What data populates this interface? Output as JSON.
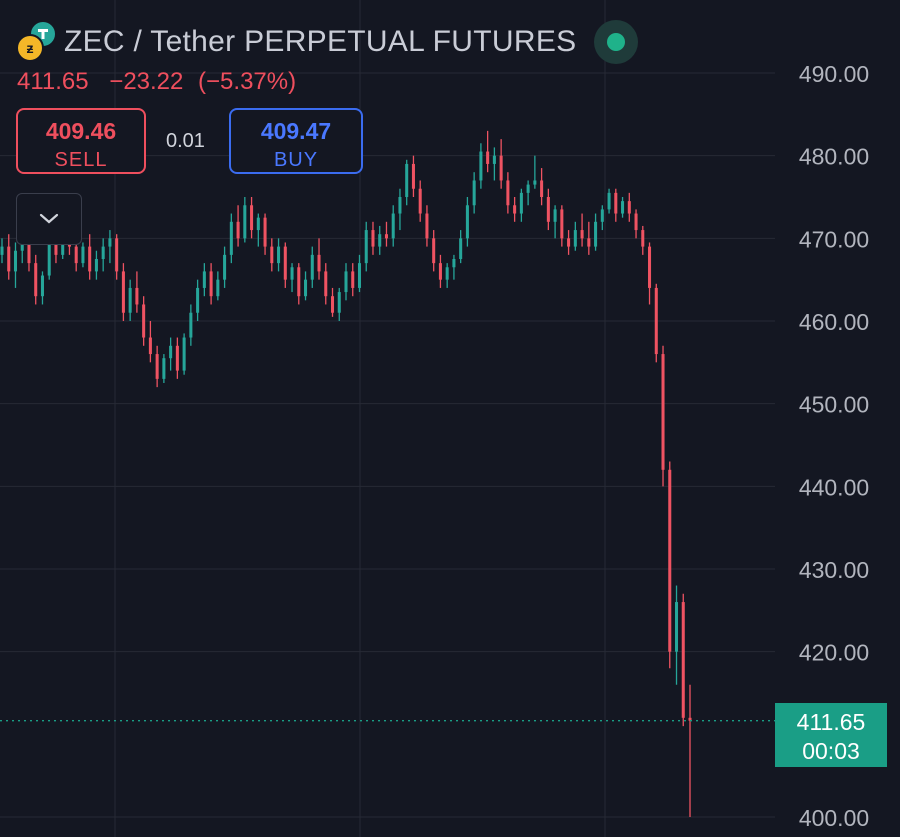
{
  "header": {
    "symbol_text": "ZEC / Tether PERPETUAL FUTURES",
    "quote_price": "411.65",
    "quote_change": "−23.22",
    "quote_change_pct": "(−5.37%)",
    "base_icon": "zcash-coin-icon",
    "quote_icon": "tether-coin-icon",
    "status_icon": "market-open-status-icon"
  },
  "trade": {
    "sell_price": "409.46",
    "sell_label": "SELL",
    "spread": "0.01",
    "buy_price": "409.47",
    "buy_label": "BUY",
    "collapse_icon": "chevron-down-icon"
  },
  "price_tag": {
    "price": "411.65",
    "countdown": "00:03"
  },
  "colors": {
    "background": "#141722",
    "up": "#26a69a",
    "down": "#ef5362",
    "grid": "#262a35",
    "axis_text": "#b2b5be",
    "sell": "#ef4f5e",
    "buy": "#4a78ff",
    "last_price": "#1a9e86"
  },
  "chart_data": {
    "type": "candlestick",
    "title": "ZEC / Tether PERPETUAL FUTURES",
    "ylim": [
      399,
      492
    ],
    "y_ticks": [
      "400.00",
      "420.00",
      "430.00",
      "440.00",
      "450.00",
      "460.00",
      "470.00",
      "480.00",
      "490.00"
    ],
    "last_price": 411.65,
    "grid": true,
    "candles": [
      [
        468.0,
        470.0,
        467.0,
        469.0
      ],
      [
        469.0,
        470.5,
        465.0,
        466.0
      ],
      [
        466.0,
        469.5,
        464.0,
        468.5
      ],
      [
        468.5,
        472.0,
        467.0,
        471.0
      ],
      [
        471.0,
        472.0,
        466.0,
        467.0
      ],
      [
        467.0,
        468.0,
        462.0,
        463.0
      ],
      [
        463.0,
        466.0,
        462.0,
        465.5
      ],
      [
        465.5,
        470.0,
        465.0,
        469.5
      ],
      [
        469.5,
        471.0,
        467.0,
        468.0
      ],
      [
        468.0,
        473.0,
        467.5,
        472.0
      ],
      [
        472.0,
        473.0,
        468.0,
        469.0
      ],
      [
        469.0,
        470.0,
        466.0,
        467.0
      ],
      [
        467.0,
        469.5,
        466.5,
        469.0
      ],
      [
        469.0,
        470.5,
        465.0,
        466.0
      ],
      [
        466.0,
        468.5,
        465.0,
        467.5
      ],
      [
        467.5,
        470.0,
        466.0,
        469.0
      ],
      [
        469.0,
        471.0,
        467.0,
        470.0
      ],
      [
        470.0,
        470.5,
        465.0,
        466.0
      ],
      [
        466.0,
        467.0,
        460.0,
        461.0
      ],
      [
        461.0,
        465.0,
        460.0,
        464.0
      ],
      [
        464.0,
        466.0,
        461.0,
        462.0
      ],
      [
        462.0,
        463.0,
        457.0,
        458.0
      ],
      [
        458.0,
        460.0,
        455.0,
        456.0
      ],
      [
        456.0,
        457.0,
        452.0,
        453.0
      ],
      [
        453.0,
        456.0,
        452.5,
        455.5
      ],
      [
        455.5,
        458.0,
        454.0,
        457.0
      ],
      [
        457.0,
        458.0,
        453.0,
        454.0
      ],
      [
        454.0,
        458.5,
        453.5,
        458.0
      ],
      [
        458.0,
        462.0,
        457.0,
        461.0
      ],
      [
        461.0,
        465.0,
        460.0,
        464.0
      ],
      [
        464.0,
        467.0,
        463.0,
        466.0
      ],
      [
        466.0,
        467.0,
        462.0,
        463.0
      ],
      [
        463.0,
        466.0,
        462.5,
        465.0
      ],
      [
        465.0,
        469.0,
        464.0,
        468.0
      ],
      [
        468.0,
        473.0,
        467.0,
        472.0
      ],
      [
        472.0,
        474.0,
        469.0,
        470.0
      ],
      [
        470.0,
        475.0,
        469.5,
        474.0
      ],
      [
        474.0,
        475.0,
        470.0,
        471.0
      ],
      [
        471.0,
        473.0,
        469.0,
        472.5
      ],
      [
        472.5,
        473.0,
        468.0,
        469.0
      ],
      [
        469.0,
        470.0,
        466.0,
        467.0
      ],
      [
        467.0,
        470.0,
        466.0,
        469.0
      ],
      [
        469.0,
        469.5,
        464.0,
        465.0
      ],
      [
        465.0,
        467.0,
        463.5,
        466.5
      ],
      [
        466.5,
        467.0,
        462.0,
        463.0
      ],
      [
        463.0,
        466.0,
        462.5,
        465.0
      ],
      [
        465.0,
        469.0,
        464.0,
        468.0
      ],
      [
        468.0,
        470.0,
        465.0,
        466.0
      ],
      [
        466.0,
        467.0,
        462.0,
        463.0
      ],
      [
        463.0,
        464.0,
        460.5,
        461.0
      ],
      [
        461.0,
        464.0,
        460.0,
        463.5
      ],
      [
        463.5,
        467.0,
        462.5,
        466.0
      ],
      [
        466.0,
        467.0,
        463.0,
        464.0
      ],
      [
        464.0,
        468.0,
        463.5,
        467.0
      ],
      [
        467.0,
        472.0,
        466.0,
        471.0
      ],
      [
        471.0,
        472.0,
        468.0,
        469.0
      ],
      [
        469.0,
        471.5,
        468.0,
        470.5
      ],
      [
        470.5,
        472.0,
        469.0,
        470.0
      ],
      [
        470.0,
        474.0,
        469.0,
        473.0
      ],
      [
        473.0,
        476.0,
        471.0,
        475.0
      ],
      [
        475.0,
        479.5,
        474.0,
        479.0
      ],
      [
        479.0,
        480.0,
        475.0,
        476.0
      ],
      [
        476.0,
        477.0,
        472.0,
        473.0
      ],
      [
        473.0,
        474.0,
        469.0,
        470.0
      ],
      [
        470.0,
        471.0,
        466.0,
        467.0
      ],
      [
        467.0,
        468.0,
        464.0,
        465.0
      ],
      [
        465.0,
        467.0,
        464.0,
        466.5
      ],
      [
        466.5,
        468.0,
        465.0,
        467.5
      ],
      [
        467.5,
        471.0,
        467.0,
        470.0
      ],
      [
        470.0,
        475.0,
        469.0,
        474.0
      ],
      [
        474.0,
        478.0,
        473.0,
        477.0
      ],
      [
        477.0,
        481.5,
        476.0,
        480.5
      ],
      [
        480.5,
        483.0,
        478.0,
        479.0
      ],
      [
        479.0,
        481.0,
        477.0,
        480.0
      ],
      [
        480.0,
        482.0,
        476.0,
        477.0
      ],
      [
        477.0,
        478.0,
        473.0,
        474.0
      ],
      [
        474.0,
        475.0,
        472.0,
        473.0
      ],
      [
        473.0,
        476.0,
        472.0,
        475.5
      ],
      [
        475.5,
        477.0,
        474.0,
        476.5
      ],
      [
        476.5,
        480.0,
        476.0,
        477.0
      ],
      [
        477.0,
        478.5,
        474.0,
        475.0
      ],
      [
        475.0,
        476.0,
        471.0,
        472.0
      ],
      [
        472.0,
        474.0,
        470.0,
        473.5
      ],
      [
        473.5,
        474.0,
        469.0,
        470.0
      ],
      [
        470.0,
        471.0,
        468.0,
        469.0
      ],
      [
        469.0,
        472.0,
        468.5,
        471.0
      ],
      [
        471.0,
        473.0,
        469.0,
        470.0
      ],
      [
        470.0,
        472.0,
        468.0,
        469.0
      ],
      [
        469.0,
        473.0,
        468.5,
        472.0
      ],
      [
        472.0,
        474.0,
        471.0,
        473.5
      ],
      [
        473.5,
        476.0,
        473.0,
        475.5
      ],
      [
        475.5,
        476.0,
        472.0,
        473.0
      ],
      [
        473.0,
        475.0,
        472.5,
        474.5
      ],
      [
        474.5,
        475.5,
        472.0,
        473.0
      ],
      [
        473.0,
        473.5,
        470.0,
        471.0
      ],
      [
        471.0,
        471.5,
        468.0,
        469.0
      ],
      [
        469.0,
        469.5,
        462.0,
        464.0
      ],
      [
        464.0,
        464.5,
        455.0,
        456.0
      ],
      [
        456.0,
        457.0,
        440.0,
        442.0
      ],
      [
        442.0,
        443.0,
        418.0,
        420.0
      ],
      [
        420.0,
        428.0,
        416.0,
        426.0
      ],
      [
        426.0,
        427.0,
        411.0,
        412.0
      ],
      [
        412.0,
        416.0,
        400.0,
        411.65
      ]
    ]
  }
}
